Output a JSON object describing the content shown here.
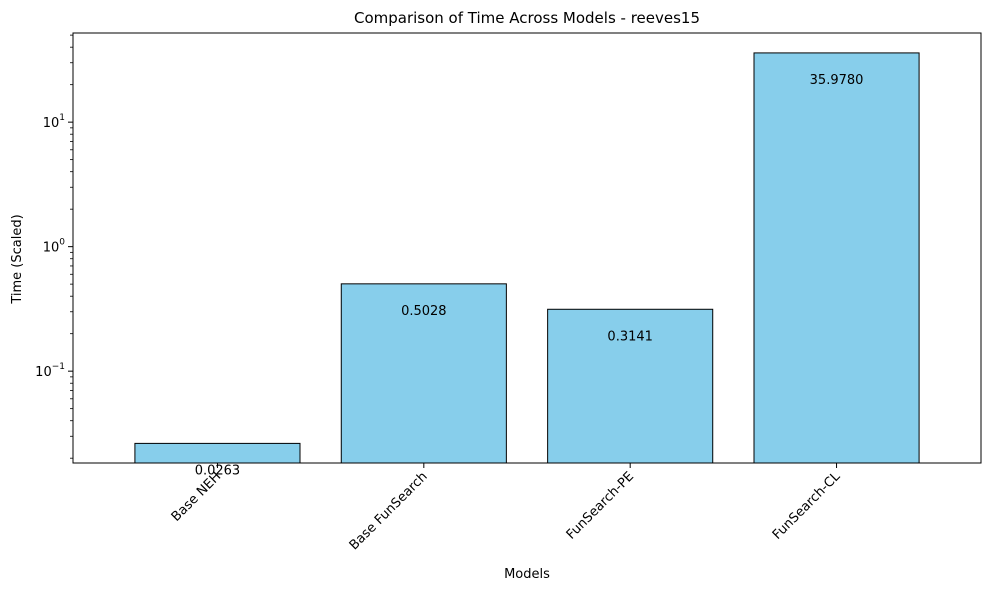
{
  "chart_data": {
    "type": "bar",
    "title": "Comparison of Time Across Models - reeves15",
    "xlabel": "Models",
    "ylabel": "Time (Scaled)",
    "yscale": "log",
    "ylim": [
      0.0183,
      52
    ],
    "categories": [
      "Base NEH",
      "Base FunSearch",
      "FunSearch-PE",
      "FunSearch-CL"
    ],
    "values": [
      0.0263,
      0.5028,
      0.3141,
      35.978
    ],
    "value_labels": [
      "0.0263",
      "0.5028",
      "0.3141",
      "35.9780"
    ],
    "y_ticks": [
      {
        "base": "10",
        "exp": "−1",
        "value": 0.1
      },
      {
        "base": "10",
        "exp": "0",
        "value": 1
      },
      {
        "base": "10",
        "exp": "1",
        "value": 10
      }
    ],
    "grid": false,
    "bar_color": "#87CEEB",
    "edge_color": "#000000"
  }
}
